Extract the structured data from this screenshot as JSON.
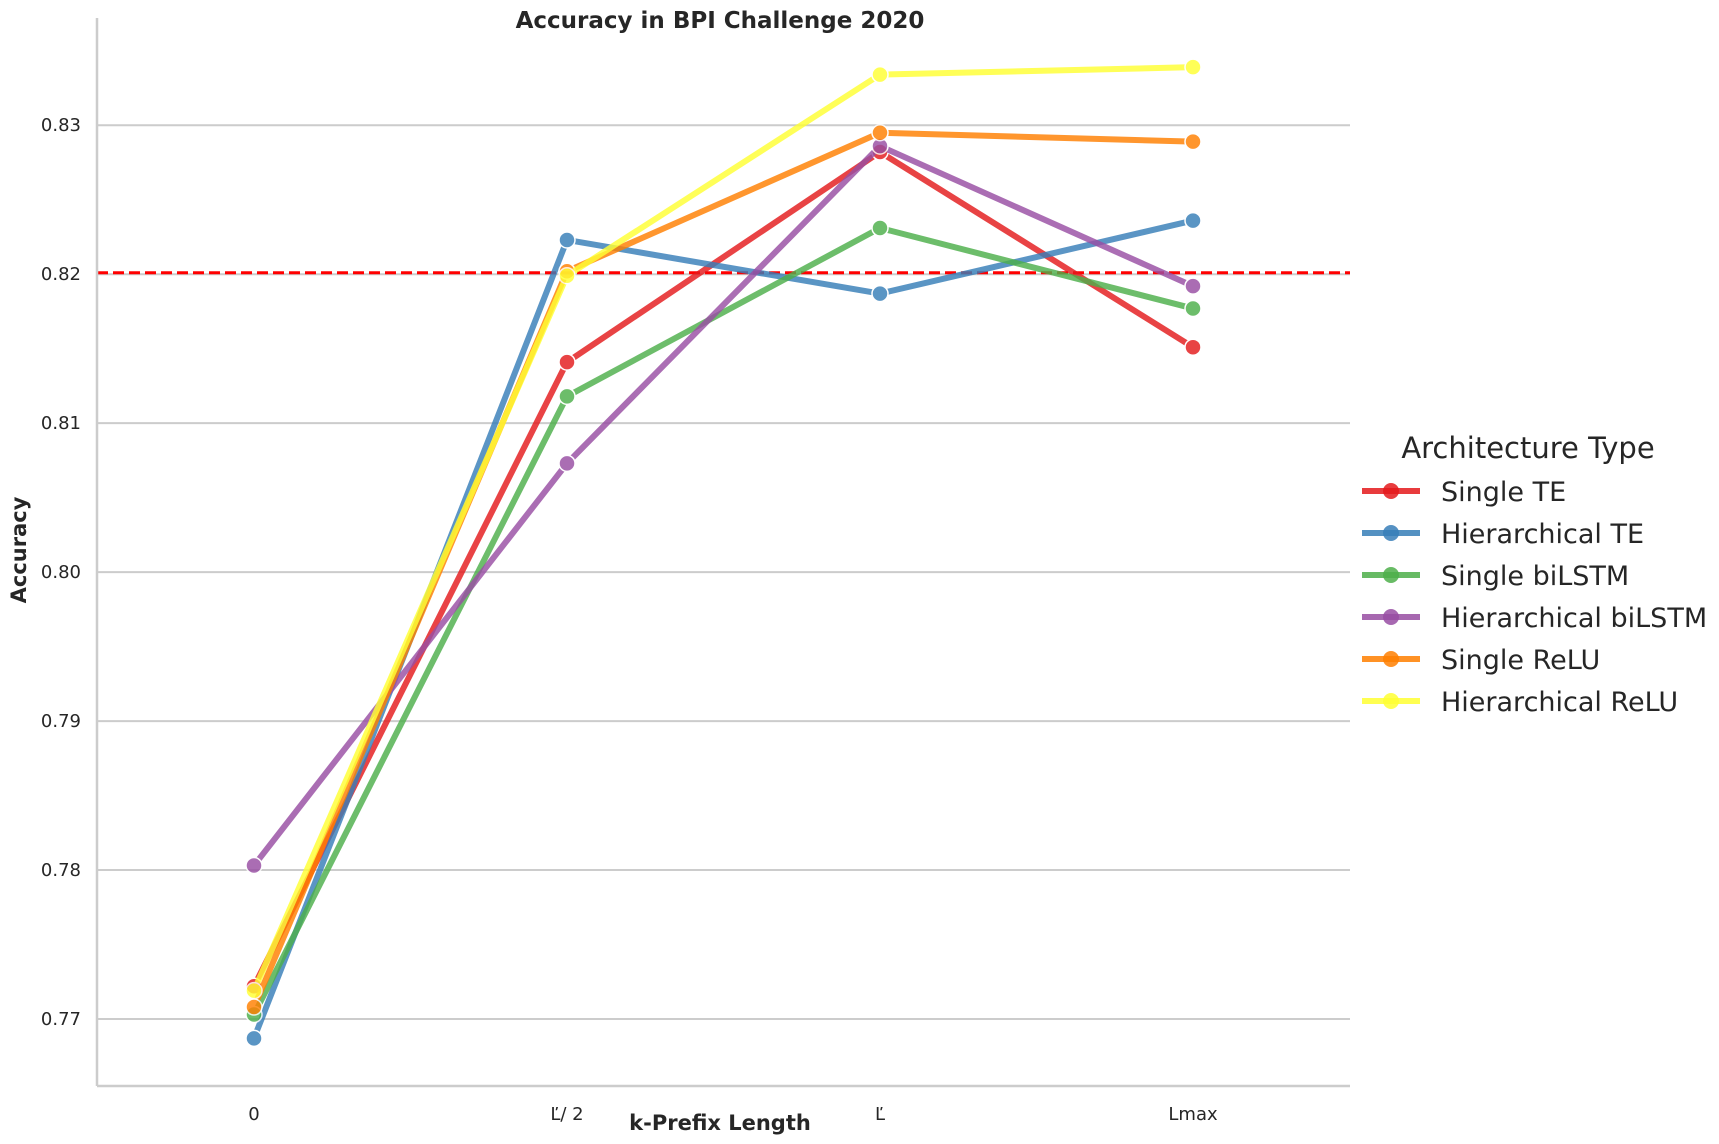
{
  "chart_data": {
    "type": "line",
    "title": "Accuracy in BPI Challenge 2020",
    "xlabel": "k-Prefix Length",
    "ylabel": "Accuracy",
    "categories": [
      "0",
      "Ľ/ 2",
      "Ľ",
      "Lmax"
    ],
    "ylim": [
      0.7655,
      0.8372
    ],
    "yticks": [
      0.77,
      0.78,
      0.79,
      0.8,
      0.81,
      0.82,
      0.83
    ],
    "ytick_labels": [
      "0.77",
      "0.78",
      "0.79",
      "0.80",
      "0.81",
      "0.82",
      "0.83"
    ],
    "grid": "horizontal",
    "reference_line": {
      "value": 0.8201,
      "color": "#ff0000",
      "style": "dashed"
    },
    "legend": {
      "title": "Architecture Type",
      "placement": "right"
    },
    "series": [
      {
        "name": "Single TE",
        "color": "#e41a1c",
        "values": [
          0.7722,
          0.8141,
          0.8282,
          0.8151
        ]
      },
      {
        "name": "Hierarchical TE",
        "color": "#377eb8",
        "values": [
          0.7687,
          0.8223,
          0.8187,
          0.8236
        ]
      },
      {
        "name": "Single biLSTM",
        "color": "#4daf4a",
        "values": [
          0.7703,
          0.8118,
          0.8231,
          0.8177
        ]
      },
      {
        "name": "Hierarchical biLSTM",
        "color": "#984ea3",
        "values": [
          0.7803,
          0.8073,
          0.8286,
          0.8192
        ]
      },
      {
        "name": "Single ReLU",
        "color": "#ff7f00",
        "values": [
          0.7708,
          0.8202,
          0.8295,
          0.8289
        ]
      },
      {
        "name": "Hierarchical ReLU",
        "color": "#ffff33",
        "values": [
          0.7719,
          0.8199,
          0.8334,
          0.8339
        ]
      }
    ]
  }
}
